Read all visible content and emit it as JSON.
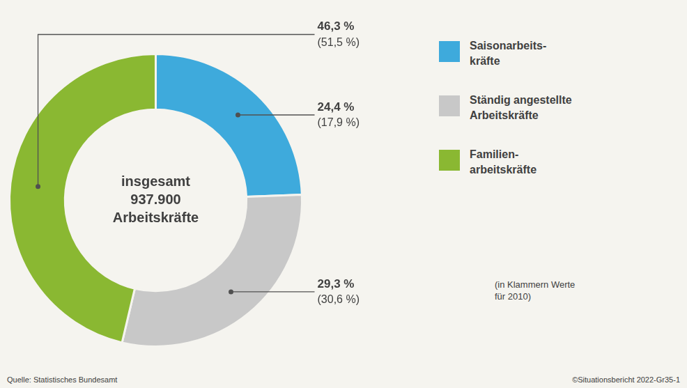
{
  "chart_data": {
    "type": "doughnut",
    "categories": [
      "Saisonarbeits-\nkräfte",
      "Ständig angestellte\nArbeitskräfte",
      "Familien-\narbeitskräfte"
    ],
    "values": [
      24.4,
      29.3,
      46.3
    ],
    "value_labels": [
      "24,4 %",
      "29,3 %",
      "46,3 %"
    ],
    "values_2010": [
      17.9,
      30.6,
      51.5
    ],
    "value_labels_2010": [
      "(17,9 %)",
      "(30,6 %)",
      "(51,5 %)"
    ],
    "colors": [
      "#3eaadc",
      "#c8c8c8",
      "#8ab832"
    ],
    "center_text": [
      "insgesamt",
      "937.900",
      "Arbeitskräfte"
    ],
    "note": "(in Klammern Werte\nfür 2010)",
    "footnotes": [
      "Quelle: Statistisches Bundesamt",
      "©Situationsbericht 2022-Gr35-1"
    ],
    "data_labels": true,
    "legend": "right",
    "background_color": "#f5f4ef",
    "text_color": "#404040"
  }
}
